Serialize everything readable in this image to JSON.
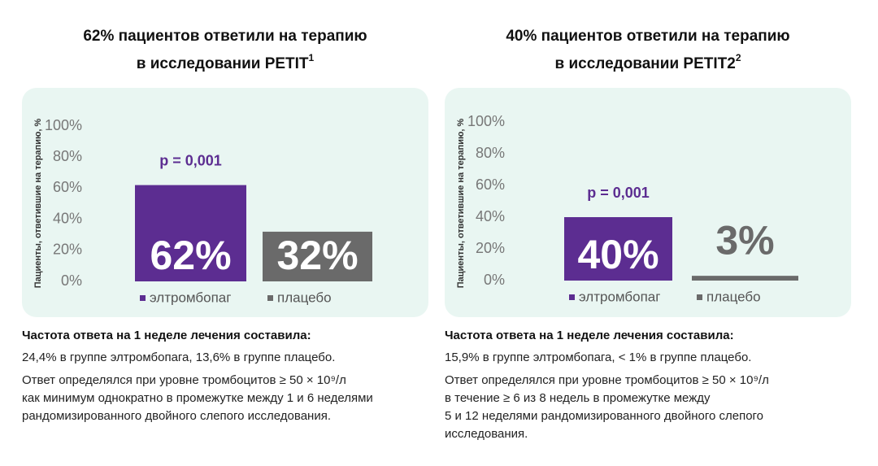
{
  "chart_data": [
    {
      "type": "bar",
      "title": [
        "62% пациентов ответили на терапию",
        "в исследовании PETIT"
      ],
      "title_ref": "1",
      "y_label": "Пациенты, ответившие на терапию, %",
      "ylim": [
        0,
        100
      ],
      "yticks": [
        {
          "value": 0,
          "label": "0%"
        },
        {
          "value": 20,
          "label": "20%"
        },
        {
          "value": 40,
          "label": "40%"
        },
        {
          "value": 60,
          "label": "60%"
        },
        {
          "value": 80,
          "label": "80%"
        },
        {
          "value": 100,
          "label": "100%"
        }
      ],
      "categories": [
        "элтромбопаг",
        "плацебо"
      ],
      "values": [
        62,
        32
      ],
      "value_labels": [
        "62%",
        "32%"
      ],
      "colors": [
        "#5c2d91",
        "#6a6a6a"
      ],
      "annotation": "p = 0,001",
      "notes_heading": "Частота ответа на 1 неделе лечения составила:",
      "notes": [
        "24,4% в группе элтромбопага, 13,6% в группе плацебо.",
        "Ответ определялся при уровне тромбоцитов ≥ 50 × 10⁹/л",
        "как минимум однократно в промежутке между 1 и 6 неделями",
        "рандомизированного двойного слепого исследования."
      ]
    },
    {
      "type": "bar",
      "title": [
        "40% пациентов ответили на терапию",
        "в исследовании PETIT2"
      ],
      "title_ref": "2",
      "y_label": "Пациенты, ответившие на терапию, %",
      "ylim": [
        0,
        100
      ],
      "yticks": [
        {
          "value": 0,
          "label": "0%"
        },
        {
          "value": 20,
          "label": "20%"
        },
        {
          "value": 40,
          "label": "40%"
        },
        {
          "value": 60,
          "label": "60%"
        },
        {
          "value": 80,
          "label": "80%"
        },
        {
          "value": 100,
          "label": "100%"
        }
      ],
      "categories": [
        "элтромбопаг",
        "плацебо"
      ],
      "values": [
        40,
        3
      ],
      "value_labels": [
        "40%",
        "3%"
      ],
      "colors": [
        "#5c2d91",
        "#6a6a6a"
      ],
      "annotation": "p = 0,001",
      "notes_heading": "Частота ответа на 1 неделе лечения составила:",
      "notes": [
        "15,9% в группе элтромбопага, < 1% в группе плацебо.",
        "Ответ определялся при уровне тромбоцитов ≥ 50 × 10⁹/л",
        "в течение ≥ 6 из 8 недель в промежутке между",
        "5 и 12 неделями рандомизированного двойного слепого",
        "исследования."
      ]
    }
  ]
}
